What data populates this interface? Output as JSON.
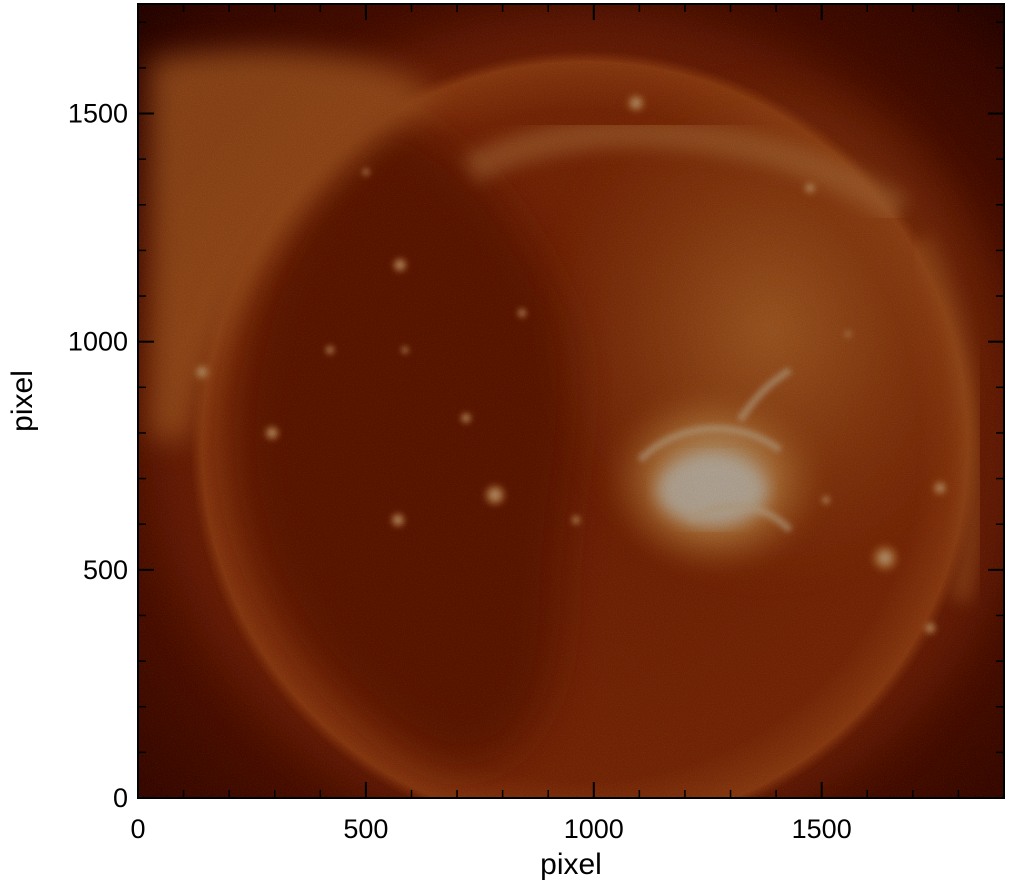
{
  "figure": {
    "x_axis_title": "pixel",
    "y_axis_title": "pixel",
    "x_ticks": [
      "0",
      "500",
      "1000",
      "1500"
    ],
    "y_ticks": [
      "0",
      "500",
      "1000",
      "1500"
    ],
    "x_range": [
      0,
      1900
    ],
    "y_range": [
      0,
      1740
    ],
    "image_subject": "solar-xray-full-disk",
    "colormap": [
      "#3a0500",
      "#7a1a02",
      "#b9470d",
      "#e07a2a",
      "#f7b26a",
      "#fff0d8"
    ]
  }
}
